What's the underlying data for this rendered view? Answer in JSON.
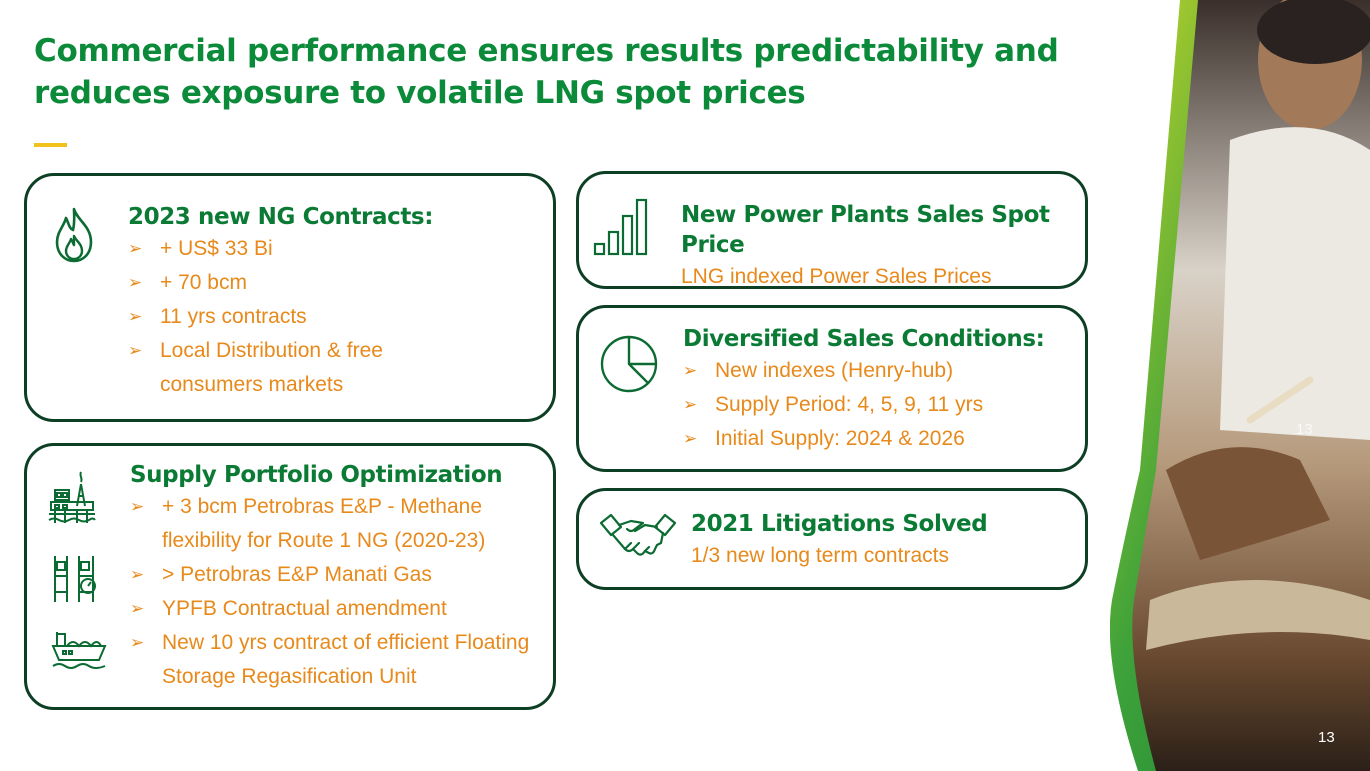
{
  "title": "Commercial performance ensures results predictability and reduces exposure to volatile LNG spot prices",
  "cards": {
    "contracts": {
      "heading": "2023 new NG Contracts:",
      "bullets": [
        "+ US$ 33 Bi",
        "+ 70 bcm",
        "11 yrs contracts",
        "Local Distribution & free consumers markets"
      ],
      "icon": "flame-icon"
    },
    "supply": {
      "heading": "Supply Portfolio Optimization",
      "bullets": [
        "+ 3 bcm Petrobras E&P - Methane flexibility for Route 1 NG (2020-23)",
        "> Petrobras E&P Manati Gas",
        "YPFB Contractual amendment",
        "New 10 yrs contract of efficient Floating Storage Regasification Unit"
      ],
      "icons": [
        "oil-platform-icon",
        "gas-meter-icon",
        "lng-ship-icon"
      ]
    },
    "power": {
      "heading": "New Power Plants Sales Spot Price",
      "subtitle": "LNG indexed Power Sales Prices",
      "icon": "bar-chart-icon"
    },
    "diversified": {
      "heading": "Diversified Sales Conditions:",
      "bullets": [
        "New indexes (Henry-hub)",
        "Supply Period: 4, 5, 9, 11 yrs",
        "Initial Supply: 2024 & 2026"
      ],
      "icon": "pie-chart-icon"
    },
    "litigation": {
      "heading": "2021 Litigations Solved",
      "subtitle": "1/3 new long term contracts",
      "icon": "handshake-icon"
    }
  },
  "page_number": "13",
  "bullet_glyph": "➢",
  "colors": {
    "title": "#0b8a3a",
    "accent": "#e8891b",
    "border": "#0d3f24",
    "underline": "#f1c21b"
  }
}
